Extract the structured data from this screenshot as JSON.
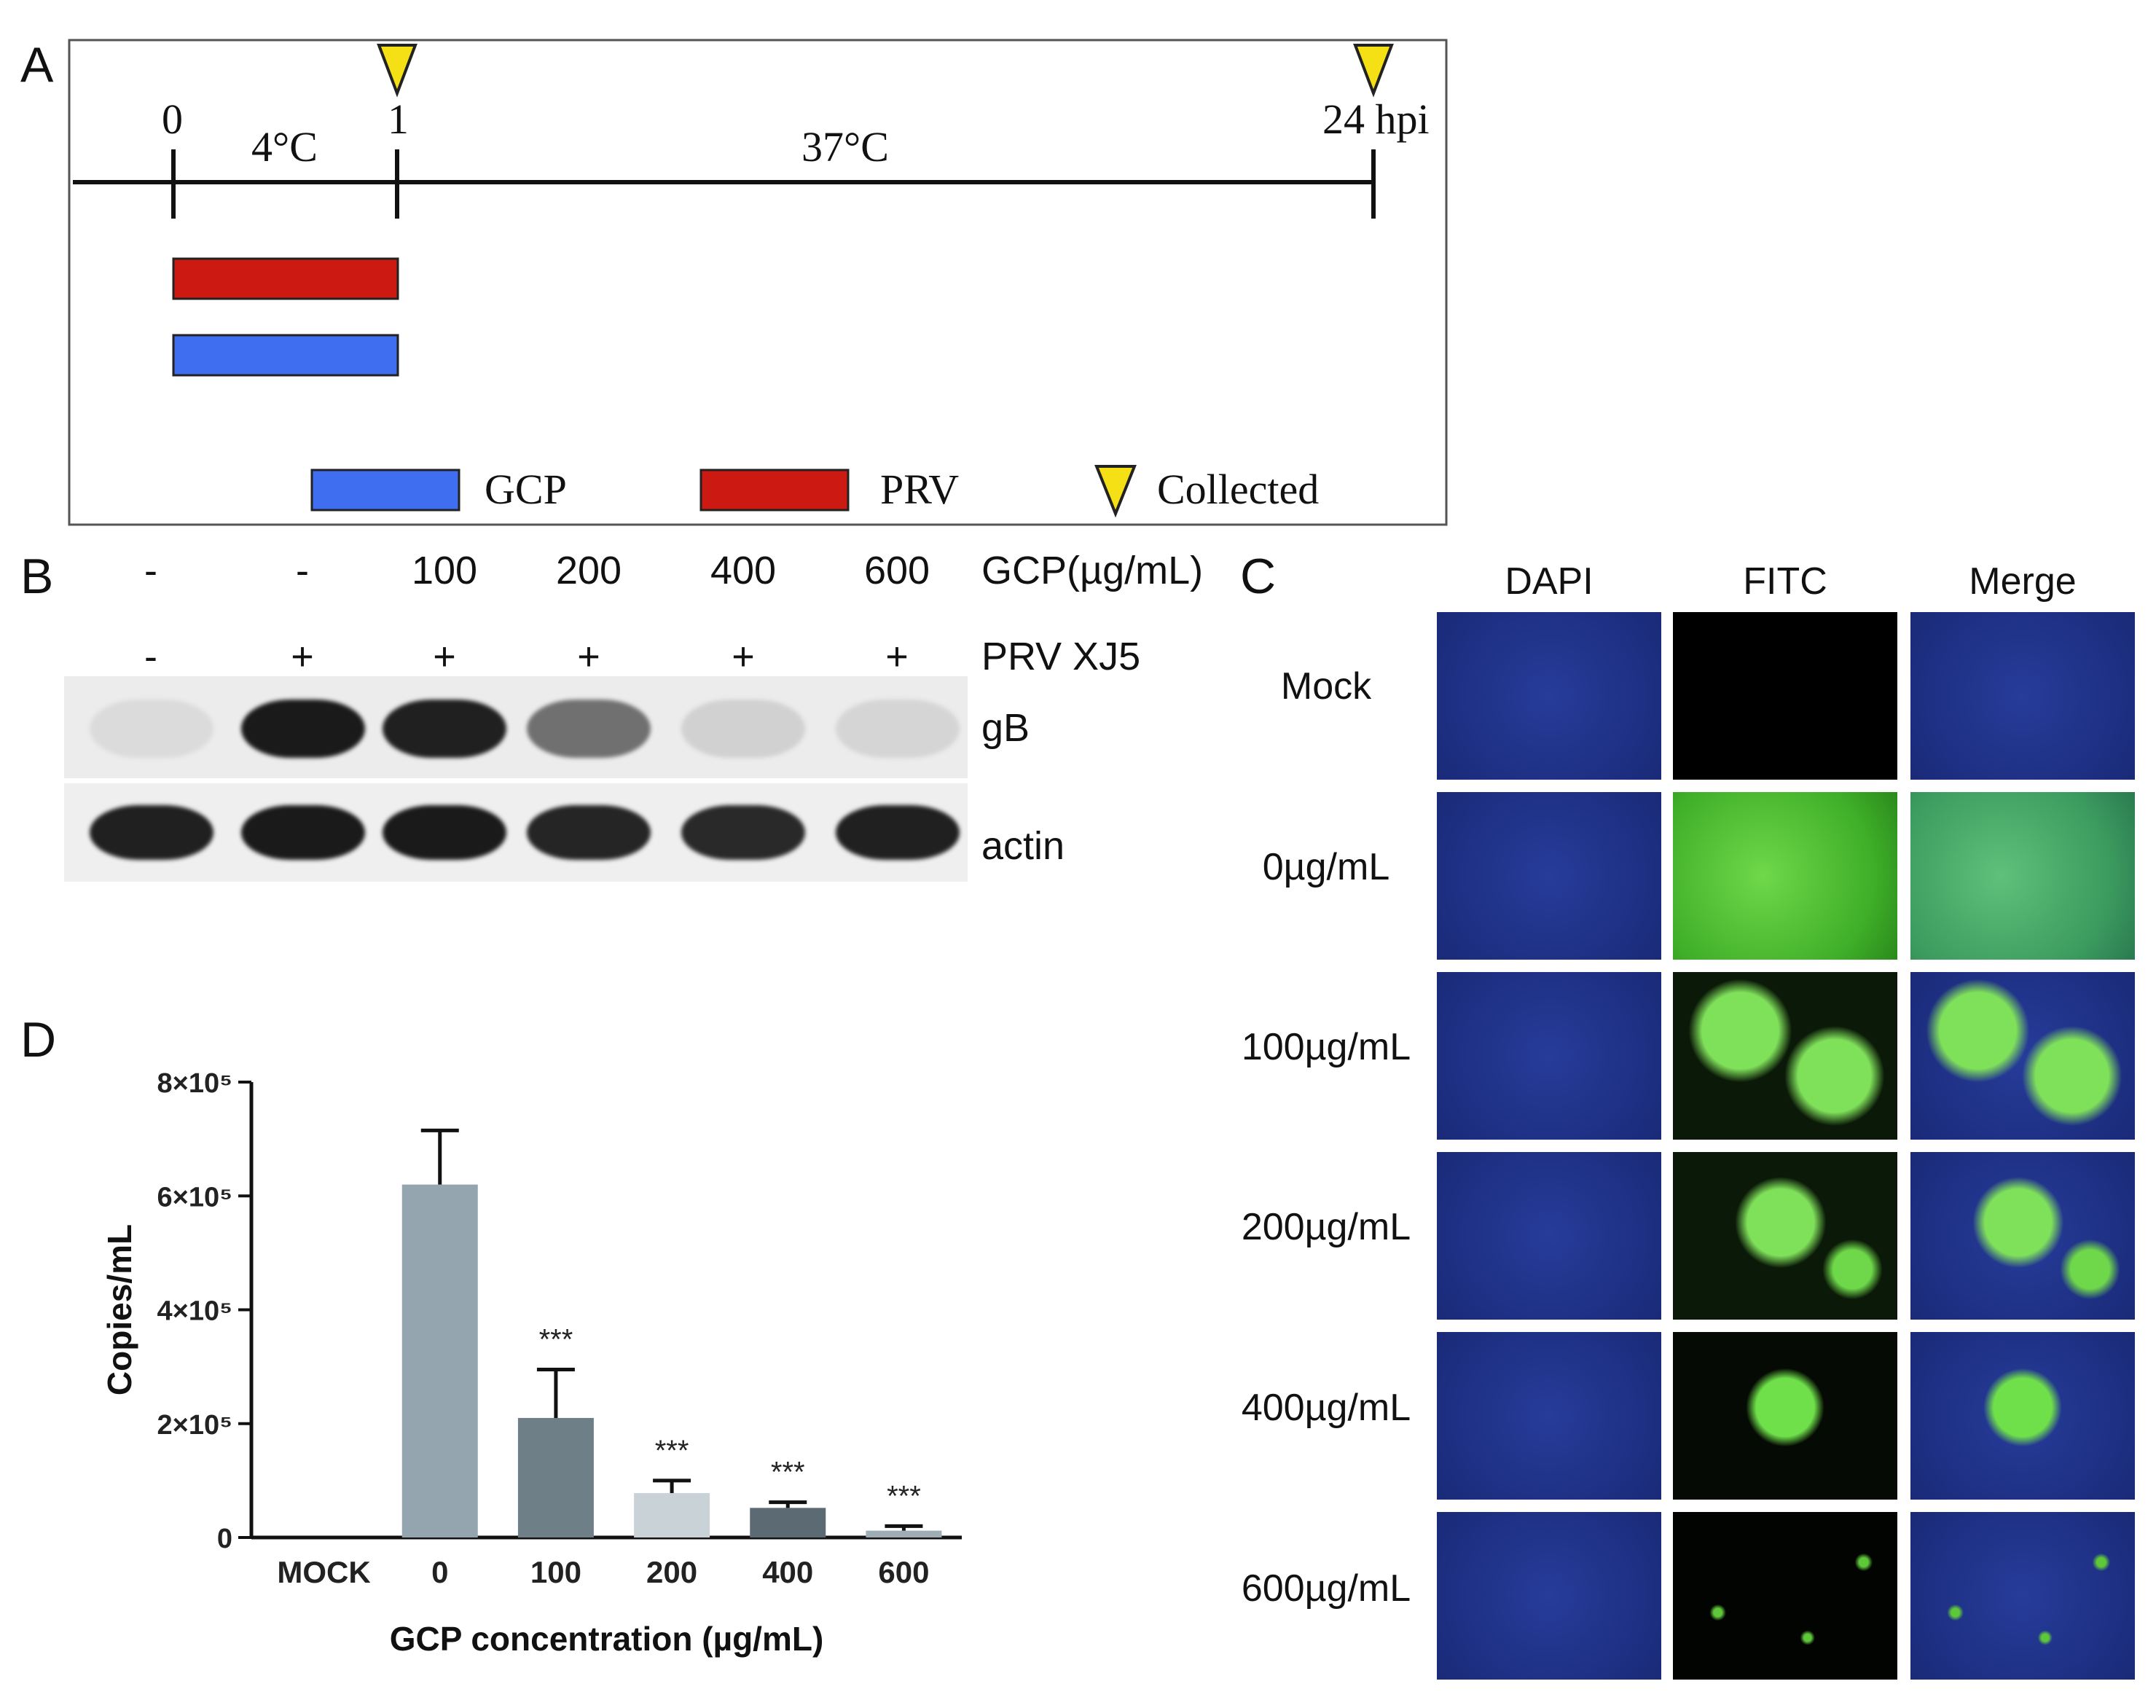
{
  "panelA": {
    "letter": "A",
    "time_labels": [
      "0",
      "1",
      "24 hpi"
    ],
    "phase_labels": [
      "4°C",
      "37°C"
    ],
    "legend": [
      {
        "label": "GCP",
        "color": "#3f6ef0"
      },
      {
        "label": "PRV",
        "color": "#cc1a12"
      },
      {
        "label": "Collected",
        "color": "#f5e015"
      }
    ]
  },
  "panelB": {
    "letter": "B",
    "gcp_values": [
      "-",
      "-",
      "100",
      "200",
      "400",
      "600"
    ],
    "gcp_label": "GCP(µg/mL)",
    "prv_values": [
      "-",
      "+",
      "+",
      "+",
      "+",
      "+"
    ],
    "prv_label": "PRV XJ5",
    "gB_label": "gB",
    "actin_label": "actin",
    "gB_intensity": [
      0.05,
      0.95,
      0.92,
      0.55,
      0.1,
      0.08
    ],
    "actin_intensity": [
      0.92,
      0.95,
      0.95,
      0.9,
      0.88,
      0.92
    ]
  },
  "panelC": {
    "letter": "C",
    "columns": [
      "DAPI",
      "FITC",
      "Merge"
    ],
    "rows": [
      "Mock",
      "0µg/mL",
      "100µg/mL",
      "200µg/mL",
      "400µg/mL",
      "600µg/mL"
    ]
  },
  "panelD": {
    "letter": "D"
  },
  "chart_data": {
    "type": "bar",
    "categories": [
      "MOCK",
      "0",
      "100",
      "200",
      "400",
      "600"
    ],
    "values": [
      0,
      620000,
      210000,
      78000,
      52000,
      12000
    ],
    "errors": [
      0,
      95000,
      85000,
      22000,
      10000,
      8000
    ],
    "significance": [
      "",
      "",
      "***",
      "***",
      "***",
      "***"
    ],
    "colors": [
      "#95a5b0",
      "#95a5b0",
      "#6f7f88",
      "#c9d2d6",
      "#5c6b73",
      "#9fadb5"
    ],
    "ylim": [
      0,
      800000
    ],
    "yticks": [
      "0",
      "2×10⁵",
      "4×10⁵",
      "6×10⁵",
      "8×10⁵"
    ],
    "ylabel": "Copies/mL",
    "xlabel": "GCP concentration (µg/mL)"
  }
}
